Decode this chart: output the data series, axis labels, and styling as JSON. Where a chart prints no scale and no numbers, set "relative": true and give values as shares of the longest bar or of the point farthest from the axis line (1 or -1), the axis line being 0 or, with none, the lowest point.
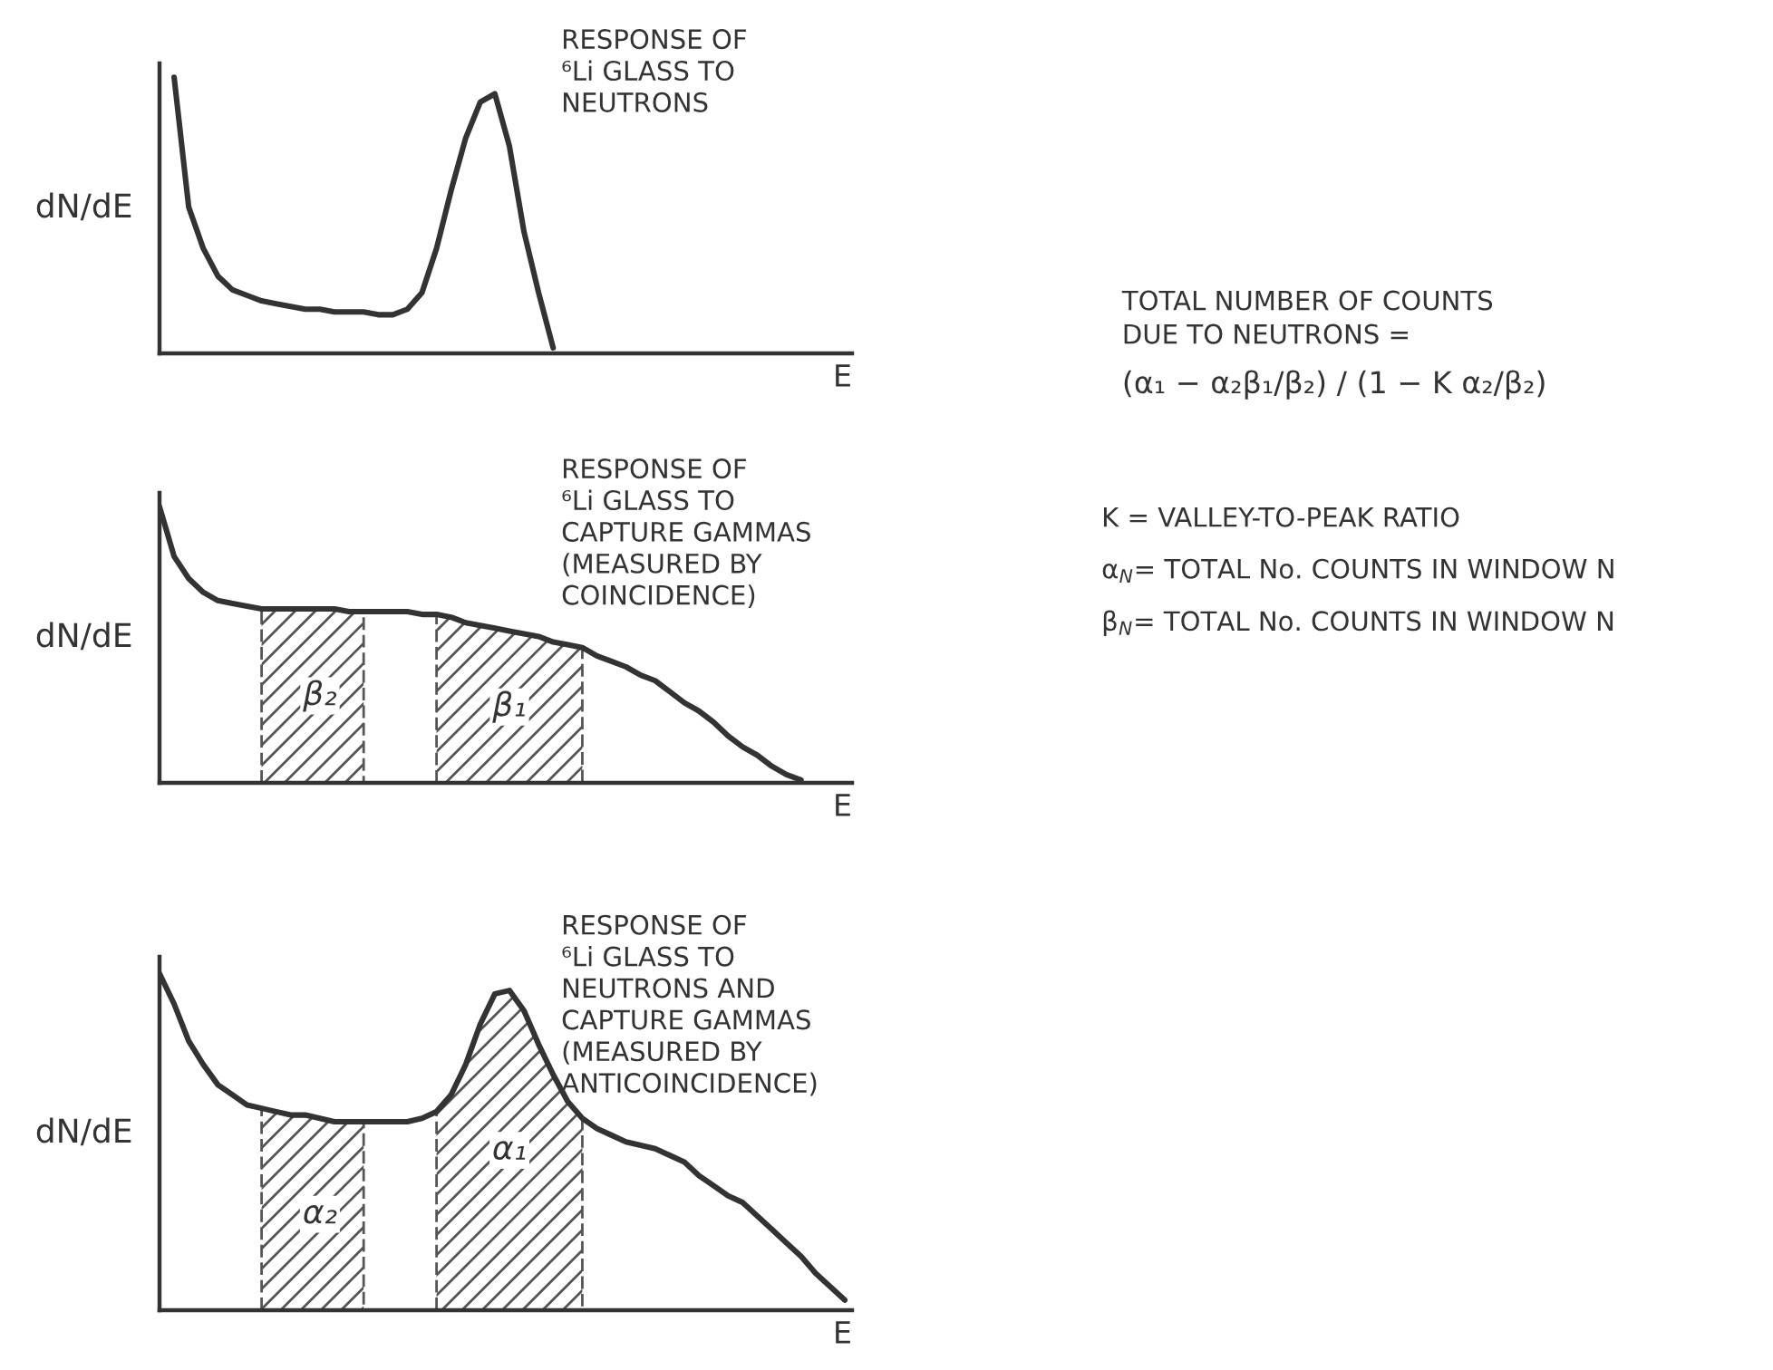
{
  "chart_data": [
    {
      "type": "line",
      "title": "RESPONSE OF\n⁶Li GLASS TO\nNEUTRONS",
      "xlabel": "E",
      "ylabel": "dN/dE",
      "relative": true,
      "tick_labels": false,
      "categories": [
        null,
        null,
        null,
        null,
        null,
        null,
        null,
        null,
        null,
        null,
        null,
        null,
        null,
        null,
        null,
        null,
        null,
        null,
        null,
        null,
        null,
        null,
        null,
        null,
        null,
        null,
        null,
        null,
        null,
        null,
        null,
        null,
        null,
        null,
        null,
        null,
        null,
        null,
        null,
        null,
        null,
        null,
        null,
        null,
        null,
        null,
        null,
        null
      ],
      "series": [
        {
          "type": "line",
          "color": "#333333",
          "values": [
            null,
            1.0,
            0.53,
            0.38,
            0.28,
            0.23,
            0.21,
            0.19,
            0.18,
            0.17,
            0.16,
            0.16,
            0.15,
            0.15,
            0.15,
            0.14,
            0.14,
            0.16,
            0.22,
            0.38,
            0.59,
            0.78,
            0.91,
            0.94,
            0.75,
            0.44,
            0.22,
            0.02,
            null,
            null,
            null,
            null,
            null,
            null,
            null,
            null,
            null,
            null,
            null,
            null,
            null,
            null,
            null,
            null,
            null,
            null,
            null,
            null
          ]
        }
      ]
    },
    {
      "type": "line",
      "title": "RESPONSE OF\n⁶Li GLASS TO\nCAPTURE GAMMAS\n(MEASURED BY\nCOINCIDENCE)",
      "xlabel": "E",
      "ylabel": "dN/dE",
      "relative": true,
      "tick_labels": false,
      "categories": [
        null,
        null,
        null,
        null,
        null,
        null,
        null,
        null,
        null,
        null,
        null,
        null,
        null,
        null,
        null,
        null,
        null,
        null,
        null,
        null,
        null,
        null,
        null,
        null,
        null,
        null,
        null,
        null,
        null,
        null,
        null,
        null,
        null,
        null,
        null,
        null,
        null,
        null,
        null,
        null,
        null,
        null,
        null,
        null,
        null,
        null,
        null,
        null
      ],
      "series": [
        {
          "type": "line",
          "color": "#333333",
          "values": [
            1.0,
            0.82,
            0.74,
            0.69,
            0.66,
            0.65,
            0.64,
            0.63,
            0.63,
            0.63,
            0.63,
            0.63,
            0.63,
            0.62,
            0.62,
            0.62,
            0.62,
            0.62,
            0.61,
            0.61,
            0.6,
            0.58,
            0.57,
            0.56,
            0.55,
            0.54,
            0.53,
            0.51,
            0.5,
            0.49,
            0.46,
            0.44,
            0.42,
            0.39,
            0.37,
            0.33,
            0.29,
            0.26,
            0.22,
            0.17,
            0.13,
            0.1,
            0.06,
            0.03,
            0.01,
            null,
            null,
            null
          ]
        },
        {
          "type": "area",
          "name": "β₂",
          "color": "#555555",
          "values": [
            null,
            null,
            null,
            null,
            null,
            null,
            null,
            0.63,
            0.63,
            0.63,
            0.63,
            0.63,
            0.63,
            0.62,
            0.62,
            null,
            null,
            null,
            null,
            null,
            null,
            null,
            null,
            null,
            null,
            null,
            null,
            null,
            null,
            null,
            null,
            null,
            null,
            null,
            null,
            null,
            null,
            null,
            null,
            null,
            null,
            null,
            null,
            null,
            null,
            null,
            null,
            null
          ]
        },
        {
          "type": "area",
          "name": "β₁",
          "color": "#555555",
          "values": [
            null,
            null,
            null,
            null,
            null,
            null,
            null,
            null,
            null,
            null,
            null,
            null,
            null,
            null,
            null,
            null,
            null,
            null,
            null,
            0.61,
            0.6,
            0.58,
            0.57,
            0.56,
            0.55,
            0.54,
            0.53,
            0.51,
            0.5,
            0.49,
            null,
            null,
            null,
            null,
            null,
            null,
            null,
            null,
            null,
            null,
            null,
            null,
            null,
            null,
            null,
            null,
            null,
            null
          ]
        }
      ]
    },
    {
      "type": "line",
      "title": "RESPONSE OF\n⁶Li GLASS TO\nNEUTRONS AND\nCAPTURE GAMMAS\n(MEASURED BY\nANTICOINCIDENCE)",
      "xlabel": "E",
      "ylabel": "dN/dE",
      "relative": true,
      "tick_labels": false,
      "categories": [
        null,
        null,
        null,
        null,
        null,
        null,
        null,
        null,
        null,
        null,
        null,
        null,
        null,
        null,
        null,
        null,
        null,
        null,
        null,
        null,
        null,
        null,
        null,
        null,
        null,
        null,
        null,
        null,
        null,
        null,
        null,
        null,
        null,
        null,
        null,
        null,
        null,
        null,
        null,
        null,
        null,
        null,
        null,
        null,
        null,
        null,
        null,
        null
      ],
      "series": [
        {
          "type": "line",
          "color": "#333333",
          "values": [
            1.0,
            0.91,
            0.8,
            0.73,
            0.67,
            0.64,
            0.61,
            0.6,
            0.59,
            0.58,
            0.58,
            0.57,
            0.56,
            0.56,
            0.56,
            0.56,
            0.56,
            0.56,
            0.57,
            0.59,
            0.64,
            0.73,
            0.85,
            0.94,
            0.95,
            0.89,
            0.79,
            0.7,
            0.62,
            0.57,
            0.54,
            0.52,
            0.5,
            0.49,
            0.48,
            0.46,
            0.44,
            0.4,
            0.37,
            0.34,
            0.32,
            0.28,
            0.24,
            0.2,
            0.16,
            0.11,
            0.07,
            0.03
          ]
        },
        {
          "type": "area",
          "name": "α₂",
          "color": "#555555",
          "values": [
            null,
            null,
            null,
            null,
            null,
            null,
            null,
            0.6,
            0.59,
            0.58,
            0.58,
            0.57,
            0.56,
            0.56,
            0.56,
            null,
            null,
            null,
            null,
            null,
            null,
            null,
            null,
            null,
            null,
            null,
            null,
            null,
            null,
            null,
            null,
            null,
            null,
            null,
            null,
            null,
            null,
            null,
            null,
            null,
            null,
            null,
            null,
            null,
            null,
            null,
            null,
            null
          ]
        },
        {
          "type": "area",
          "name": "α₁",
          "color": "#555555",
          "values": [
            null,
            null,
            null,
            null,
            null,
            null,
            null,
            null,
            null,
            null,
            null,
            null,
            null,
            null,
            null,
            null,
            null,
            null,
            null,
            0.59,
            0.64,
            0.73,
            0.85,
            0.94,
            0.95,
            0.89,
            0.79,
            0.7,
            0.62,
            0.57,
            null,
            null,
            null,
            null,
            null,
            null,
            null,
            null,
            null,
            null,
            null,
            null,
            null,
            null,
            null,
            null,
            null,
            null
          ]
        }
      ]
    },
    {
      "type": "other",
      "annotations": [
        "TOTAL NUMBER OF COUNTS\nDUE TO NEUTRONS =",
        "(α₁ − α₂β₁/β₂) / (1 − K α₂/β₂)",
        "K = VALLEY-TO-PEAK RATIO",
        "α$_{N}$= TOTAL No. COUNTS IN WINDOW N",
        "β$_{N}$= TOTAL No. COUNTS IN WINDOW N"
      ]
    }
  ]
}
